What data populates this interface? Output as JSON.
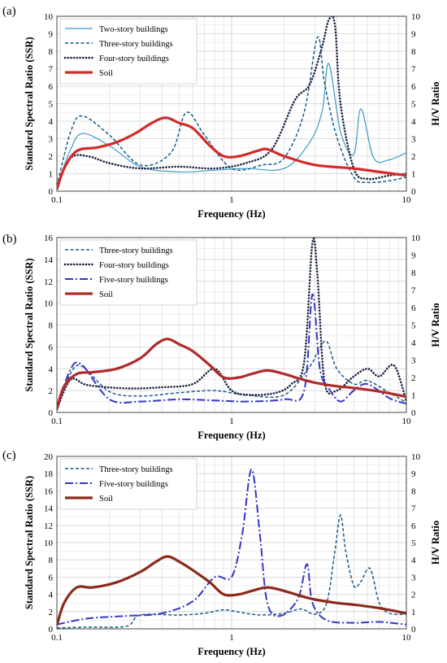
{
  "chart_data": [
    {
      "panel": "(a)",
      "type": "line",
      "x_scale": "log",
      "xlim": [
        0.1,
        10
      ],
      "xticks": [
        "0.1",
        "1",
        "10"
      ],
      "xlabel": "Frequency (Hz)",
      "ylabel": "Standard Spectral Ratio (SSR)",
      "ylim": [
        0,
        10
      ],
      "yticks": [
        "0",
        "1",
        "2",
        "3",
        "4",
        "5",
        "6",
        "7",
        "8",
        "9",
        "10"
      ],
      "y2label": "H/V Ratio",
      "y2lim": [
        0,
        10
      ],
      "y2ticks": [
        "0",
        "1",
        "2",
        "3",
        "4",
        "5",
        "6",
        "7",
        "8",
        "9",
        "10"
      ],
      "grid": true,
      "legend_position": "top-left",
      "legend": [
        "Two-story buildings",
        "Three-story buildings",
        "Four-story buildings",
        "Soil"
      ],
      "series": [
        {
          "name": "Two-story buildings",
          "style": "solid-thin",
          "color": "#3a9bc8",
          "axis": "left",
          "x": [
            0.1,
            0.12,
            0.14,
            0.2,
            0.3,
            0.5,
            0.8,
            1.2,
            2,
            2.8,
            3.3,
            3.6,
            4.2,
            5,
            5.5,
            6.5,
            8,
            10
          ],
          "y": [
            0.3,
            2.4,
            3.3,
            2.6,
            1.4,
            1.1,
            1.2,
            1.3,
            1.3,
            2.8,
            4.6,
            7.3,
            3.4,
            2.1,
            4.7,
            1.9,
            1.8,
            2.2
          ]
        },
        {
          "name": "Three-story buildings",
          "style": "dashed",
          "color": "#1a5a8a",
          "axis": "left",
          "x": [
            0.1,
            0.12,
            0.14,
            0.2,
            0.3,
            0.45,
            0.55,
            0.7,
            1,
            1.5,
            2,
            2.6,
            3.1,
            3.4,
            4,
            5,
            6,
            8,
            10
          ],
          "y": [
            0.3,
            3.4,
            4.3,
            3.2,
            1.5,
            2.2,
            4.5,
            3.2,
            1.3,
            1.5,
            1.9,
            4.5,
            8.8,
            6.2,
            3.1,
            0.8,
            0.5,
            0.6,
            0.8
          ]
        },
        {
          "name": "Four-story buildings",
          "style": "dotted",
          "color": "#1b2540",
          "axis": "left",
          "x": [
            0.1,
            0.12,
            0.15,
            0.2,
            0.3,
            0.5,
            0.8,
            1.2,
            1.7,
            2.3,
            2.8,
            3.3,
            3.6,
            3.9,
            4.2,
            5,
            6,
            8,
            10
          ],
          "y": [
            0.3,
            1.9,
            2.0,
            1.6,
            1.3,
            1.4,
            1.3,
            1.6,
            2.4,
            5.2,
            6.1,
            8.3,
            9.8,
            9.5,
            5.0,
            1.3,
            0.7,
            0.9,
            1.0
          ]
        },
        {
          "name": "Soil",
          "style": "solid-thick",
          "color": "#d42a2a",
          "axis": "right",
          "x": [
            0.1,
            0.11,
            0.13,
            0.17,
            0.22,
            0.28,
            0.35,
            0.42,
            0.5,
            0.6,
            0.75,
            0.9,
            1.1,
            1.4,
            1.6,
            2,
            3,
            5,
            7,
            10
          ],
          "y": [
            0.1,
            1.3,
            2.3,
            2.5,
            2.8,
            3.3,
            3.9,
            4.2,
            3.9,
            3.6,
            2.6,
            2.0,
            2.0,
            2.3,
            2.4,
            2.0,
            1.5,
            1.3,
            1.1,
            0.9
          ]
        }
      ]
    },
    {
      "panel": "(b)",
      "type": "line",
      "x_scale": "log",
      "xlim": [
        0.1,
        10
      ],
      "xticks": [
        "0.1",
        "1",
        "10"
      ],
      "xlabel": "Frequency (Hz)",
      "ylabel": "Standard Spectral Ratio (SSR)",
      "ylim": [
        0,
        16
      ],
      "yticks": [
        "0",
        "2",
        "4",
        "6",
        "8",
        "10",
        "12",
        "14",
        "16"
      ],
      "y2label": "H/V Ratio",
      "y2lim": [
        0,
        10
      ],
      "y2ticks": [
        "0",
        "1",
        "2",
        "3",
        "4",
        "5",
        "6",
        "7",
        "8",
        "9",
        "10"
      ],
      "grid": true,
      "legend_position": "top-left",
      "legend": [
        "Three-story buildings",
        "Four-story buildings",
        "Five-story buildings",
        "Soil"
      ],
      "series": [
        {
          "name": "Three-story buildings",
          "style": "dashed",
          "color": "#1a5a8a",
          "axis": "left",
          "x": [
            0.1,
            0.12,
            0.14,
            0.2,
            0.3,
            0.5,
            0.8,
            1.2,
            2,
            2.8,
            3.1,
            3.5,
            4,
            5,
            6,
            8,
            10
          ],
          "y": [
            0.3,
            3.6,
            4.2,
            1.9,
            1.5,
            1.8,
            2.0,
            1.6,
            1.6,
            4.2,
            5.5,
            6.5,
            4.0,
            2.6,
            2.9,
            1.8,
            0.9
          ]
        },
        {
          "name": "Four-story buildings",
          "style": "dotted",
          "color": "#1b2540",
          "axis": "left",
          "x": [
            0.1,
            0.12,
            0.15,
            0.25,
            0.4,
            0.6,
            0.8,
            1.0,
            1.3,
            1.8,
            2.2,
            2.6,
            2.9,
            3.1,
            3.4,
            4,
            5,
            6,
            7,
            8.5,
            10
          ],
          "y": [
            0.3,
            3.0,
            2.5,
            2.2,
            2.3,
            2.6,
            4.0,
            2.0,
            1.6,
            1.8,
            2.6,
            4.6,
            15.5,
            12.5,
            2.8,
            2.0,
            3.3,
            4.0,
            3.3,
            4.3,
            1.0
          ]
        },
        {
          "name": "Five-story buildings",
          "style": "dashdot",
          "color": "#3535c8",
          "axis": "left",
          "x": [
            0.1,
            0.12,
            0.14,
            0.2,
            0.3,
            0.5,
            0.8,
            1.2,
            2,
            2.6,
            2.9,
            3.2,
            3.6,
            4.2,
            5,
            6,
            8,
            10
          ],
          "y": [
            0.3,
            4.0,
            4.3,
            1.2,
            1.0,
            1.2,
            1.1,
            1.0,
            1.2,
            2.0,
            10.8,
            4.0,
            2.2,
            1.0,
            2.0,
            2.6,
            1.3,
            0.8
          ]
        },
        {
          "name": "Soil",
          "style": "solid-thick",
          "color": "#b02a2a",
          "axis": "right",
          "x": [
            0.1,
            0.11,
            0.13,
            0.16,
            0.22,
            0.3,
            0.37,
            0.43,
            0.5,
            0.6,
            0.75,
            0.9,
            1.1,
            1.3,
            1.6,
            2,
            2.5,
            3,
            4,
            5,
            7,
            10
          ],
          "y": [
            0.2,
            1.5,
            2.2,
            2.3,
            2.5,
            3.1,
            3.9,
            4.2,
            3.9,
            3.5,
            2.7,
            2.0,
            2.0,
            2.2,
            2.4,
            2.2,
            1.9,
            1.7,
            1.5,
            1.4,
            1.2,
            0.9
          ]
        }
      ]
    },
    {
      "panel": "(c)",
      "type": "line",
      "x_scale": "log",
      "xlim": [
        0.1,
        10
      ],
      "xticks": [
        "0.1",
        "1",
        "10"
      ],
      "xlabel": "Frequency (Hz)",
      "ylabel": "Standard Spectral Ratio (SSR)",
      "ylim": [
        0,
        20
      ],
      "yticks": [
        "0",
        "2",
        "4",
        "6",
        "8",
        "10",
        "12",
        "14",
        "16",
        "18",
        "20"
      ],
      "y2label": "H/V Ratio",
      "y2lim": [
        0,
        10
      ],
      "y2ticks": [
        "0",
        "1",
        "2",
        "3",
        "4",
        "5",
        "6",
        "7",
        "8",
        "9",
        "10"
      ],
      "grid": true,
      "legend_position": "top-left",
      "legend": [
        "Three-story buildings",
        "Five-story buildings",
        "Soil"
      ],
      "series": [
        {
          "name": "Three-story buildings",
          "style": "dashed",
          "color": "#1a5a8a",
          "axis": "left",
          "x": [
            0.1,
            0.15,
            0.25,
            0.3,
            0.5,
            0.7,
            0.9,
            1.2,
            1.5,
            2.0,
            2.5,
            3.0,
            3.5,
            3.9,
            4.2,
            4.5,
            5.0,
            5.5,
            6.2,
            7.0,
            8.0,
            10
          ],
          "y": [
            0.1,
            0.2,
            0.3,
            1.6,
            1.6,
            1.8,
            2.2,
            1.8,
            1.6,
            1.8,
            2.3,
            1.7,
            3.0,
            9.0,
            13.2,
            9.0,
            5.0,
            5.5,
            7.0,
            3.0,
            1.8,
            1.7
          ]
        },
        {
          "name": "Five-story buildings",
          "style": "dashdot",
          "color": "#3535c8",
          "axis": "left",
          "x": [
            0.1,
            0.15,
            0.25,
            0.4,
            0.6,
            0.8,
            1.0,
            1.15,
            1.3,
            1.45,
            1.6,
            1.9,
            2.4,
            2.7,
            2.9,
            3.5,
            5.0,
            7.0,
            10
          ],
          "y": [
            0.5,
            1.2,
            1.5,
            1.8,
            3.2,
            6.0,
            6.0,
            11.0,
            18.5,
            11.0,
            3.0,
            1.5,
            3.5,
            7.5,
            3.0,
            1.0,
            0.7,
            0.8,
            0.5
          ]
        },
        {
          "name": "Soil",
          "style": "solid-thick",
          "color": "#8b2a1c",
          "axis": "right",
          "x": [
            0.1,
            0.11,
            0.13,
            0.16,
            0.22,
            0.3,
            0.37,
            0.43,
            0.5,
            0.6,
            0.75,
            0.9,
            1.1,
            1.3,
            1.6,
            2,
            2.5,
            3,
            4,
            5,
            7,
            10
          ],
          "y": [
            0.2,
            1.5,
            2.4,
            2.4,
            2.7,
            3.3,
            3.9,
            4.2,
            3.9,
            3.4,
            2.7,
            2.0,
            2.0,
            2.2,
            2.4,
            2.2,
            1.9,
            1.7,
            1.5,
            1.4,
            1.2,
            0.9
          ]
        }
      ]
    }
  ]
}
